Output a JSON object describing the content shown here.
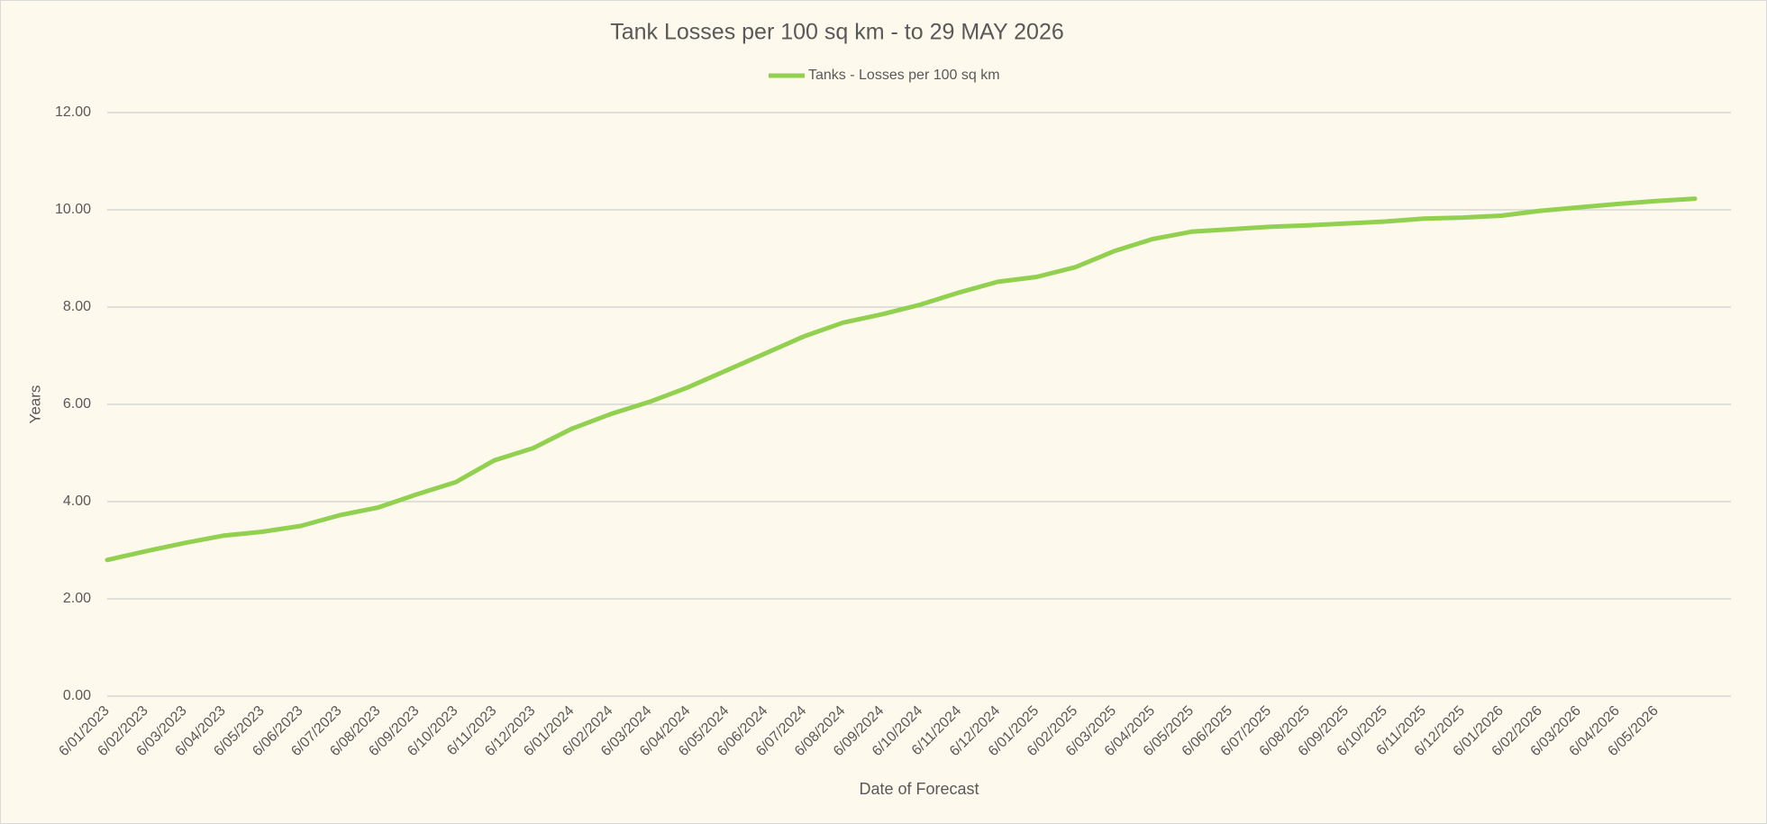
{
  "chart_data": {
    "type": "line",
    "title": "Tank Losses per 100 sq km - to 29 MAY 2026",
    "y_label": "Years",
    "x_label": "Date of Forecast",
    "categories": [
      "6/01/2023",
      "6/02/2023",
      "6/03/2023",
      "6/04/2023",
      "6/05/2023",
      "6/06/2023",
      "6/07/2023",
      "6/08/2023",
      "6/09/2023",
      "6/10/2023",
      "6/11/2023",
      "6/12/2023",
      "6/01/2024",
      "6/02/2024",
      "6/03/2024",
      "6/04/2024",
      "6/05/2024",
      "6/06/2024",
      "6/07/2024",
      "6/08/2024",
      "6/09/2024",
      "6/10/2024",
      "6/11/2024",
      "6/12/2024",
      "6/01/2025",
      "6/02/2025",
      "6/03/2025",
      "6/04/2025",
      "6/05/2025",
      "6/06/2025",
      "6/07/2025",
      "6/08/2025",
      "6/09/2025",
      "6/10/2025",
      "6/11/2025",
      "6/12/2025",
      "6/01/2026",
      "6/02/2026",
      "6/03/2026",
      "6/04/2026",
      "6/05/2026",
      null
    ],
    "series": [
      {
        "name": "Tanks - Losses per 100 sq km",
        "color": "#92d050",
        "values": [
          2.8,
          2.98,
          3.15,
          3.3,
          3.38,
          3.5,
          3.72,
          3.88,
          4.15,
          4.4,
          4.85,
          5.1,
          5.5,
          5.8,
          6.05,
          6.35,
          6.7,
          7.05,
          7.4,
          7.68,
          7.85,
          8.05,
          8.3,
          8.52,
          8.62,
          8.82,
          9.15,
          9.4,
          9.55,
          9.6,
          9.65,
          9.68,
          9.72,
          9.76,
          9.82,
          9.84,
          9.88,
          9.98,
          10.05,
          10.12,
          10.18,
          10.23
        ]
      }
    ],
    "ylim": [
      0,
      12
    ],
    "yticks": [
      {
        "value": 0,
        "label": "0.00"
      },
      {
        "value": 2,
        "label": "2.00"
      },
      {
        "value": 4,
        "label": "4.00"
      },
      {
        "value": 6,
        "label": "6.00"
      },
      {
        "value": 8,
        "label": "8.00"
      },
      {
        "value": 10,
        "label": "10.00"
      },
      {
        "value": 12,
        "label": "12.00"
      }
    ],
    "grid": true,
    "legend": "top"
  }
}
